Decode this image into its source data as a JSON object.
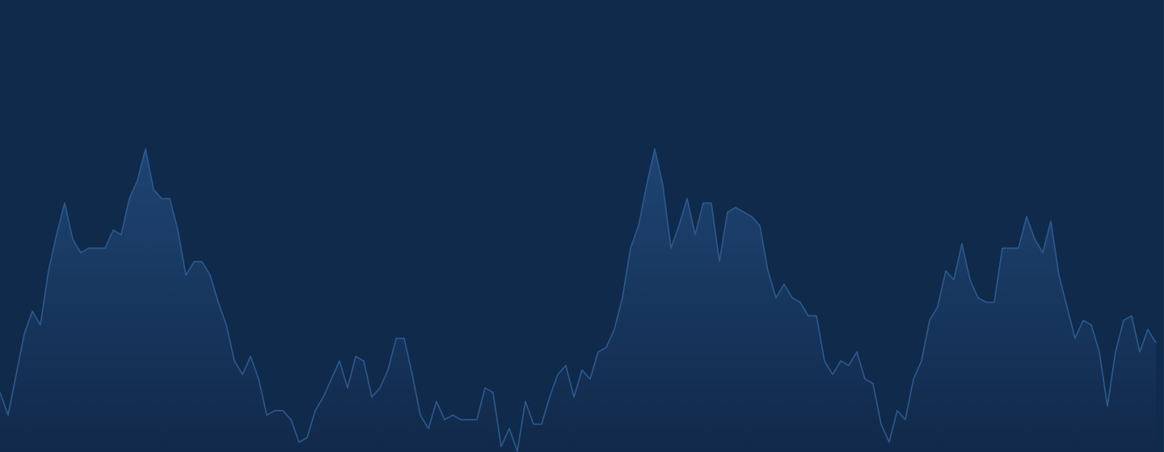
{
  "colors": {
    "background": "#0f2a4a",
    "area_top": "#1e4472",
    "area_bottom": "#11294a",
    "line": "#2c5a8f"
  },
  "chart_data": {
    "type": "area",
    "title": "",
    "xlabel": "",
    "ylabel": "",
    "grid": false,
    "legend": "none",
    "xlim": [
      0,
      144
    ],
    "ylim": [
      0,
      100
    ],
    "series": [
      {
        "name": "",
        "values": [
          13,
          8,
          17,
          26,
          31,
          28,
          40,
          48,
          55,
          47,
          44,
          45,
          45,
          45,
          49,
          48,
          56,
          60,
          67,
          58,
          56,
          56,
          49,
          39,
          42,
          42,
          39,
          33,
          28,
          20,
          17,
          21,
          16,
          8,
          9,
          9,
          7,
          2,
          3,
          9,
          12,
          16,
          20,
          14,
          21,
          20,
          12,
          14,
          18,
          25,
          25,
          17,
          8,
          5,
          11,
          7,
          8,
          7,
          7,
          7,
          14,
          13,
          1,
          5,
          0,
          11,
          6,
          6,
          12,
          17,
          19,
          12,
          18,
          16,
          22,
          23,
          27,
          34,
          45,
          50,
          59,
          67,
          59,
          45,
          50,
          56,
          48,
          55,
          55,
          42,
          53,
          54,
          53,
          52,
          50,
          40,
          34,
          37,
          34,
          33,
          30,
          30,
          20,
          17,
          20,
          19,
          22,
          16,
          15,
          6,
          2,
          9,
          7,
          16,
          20,
          29,
          32,
          40,
          38,
          46,
          38,
          34,
          33,
          33,
          45,
          45,
          45,
          52,
          47,
          44,
          51,
          39,
          32,
          25,
          29,
          28,
          22,
          10,
          22,
          29,
          30,
          22,
          27,
          24
        ]
      }
    ]
  }
}
